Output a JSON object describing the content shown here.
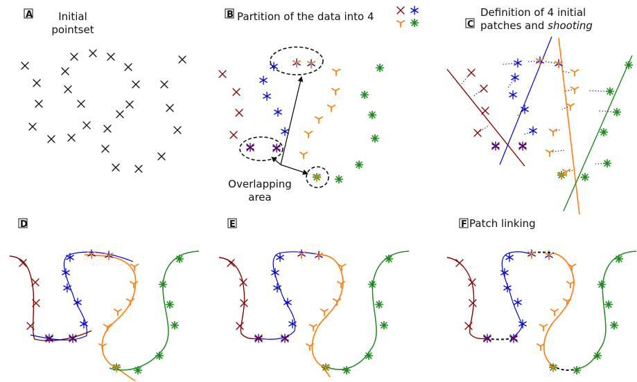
{
  "colors": {
    "black": "#111111",
    "dark_red": "#8b0000",
    "blue": "#0000dd",
    "orange": "#ff7f0e",
    "green": "#1a8a1a"
  },
  "panels": {
    "A": {
      "letter": "A",
      "title_line1": "Initial",
      "title_line2": "pointset"
    },
    "B": {
      "letter": "B",
      "title": "Partition of the data into 4",
      "annotation_line1": "Overlapping",
      "annotation_line2": "area"
    },
    "C": {
      "letter": "C",
      "title_line1": "Definition of 4 initial",
      "title_line2_prefix": "patches and ",
      "title_line2_italic": "shooting"
    },
    "D": {
      "letter": "D"
    },
    "E": {
      "letter": "E"
    },
    "F": {
      "letter": "F",
      "title": "Patch linking"
    }
  },
  "legend_icons": [
    "x-marker-icon",
    "star-marker-icon",
    "tri-marker-icon",
    "asterisk-marker-icon"
  ]
}
